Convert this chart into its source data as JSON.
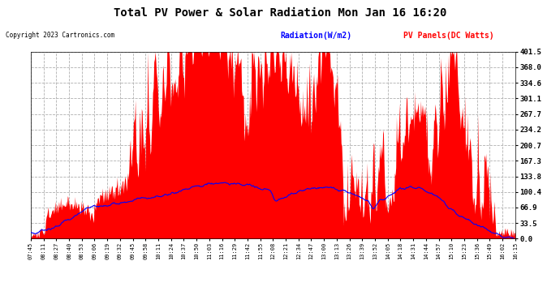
{
  "title": "Total PV Power & Solar Radiation Mon Jan 16 16:20",
  "copyright": "Copyright 2023 Cartronics.com",
  "legend_radiation": "Radiation(W/m2)",
  "legend_pv": "PV Panels(DC Watts)",
  "ylabel_right_ticks": [
    0.0,
    33.5,
    66.9,
    100.4,
    133.8,
    167.3,
    200.7,
    234.2,
    267.7,
    301.1,
    334.6,
    368.0,
    401.5
  ],
  "ymax": 401.5,
  "ymin": 0.0,
  "bg_color": "#ffffff",
  "plot_bg_color": "#ffffff",
  "grid_color": "#b0b0b0",
  "pv_fill_color": "#ff0000",
  "radiation_line_color": "#0000ff",
  "title_color": "#000000",
  "copyright_color": "#000000",
  "radiation_legend_color": "#0000ff",
  "pv_legend_color": "#ff0000",
  "x_labels": [
    "07:45",
    "08:11",
    "08:27",
    "08:40",
    "08:53",
    "09:06",
    "09:19",
    "09:32",
    "09:45",
    "09:58",
    "10:11",
    "10:24",
    "10:37",
    "10:50",
    "11:03",
    "11:16",
    "11:29",
    "11:42",
    "11:55",
    "12:08",
    "12:21",
    "12:34",
    "12:47",
    "13:00",
    "13:13",
    "13:26",
    "13:39",
    "13:52",
    "14:05",
    "14:18",
    "14:31",
    "14:44",
    "14:57",
    "15:10",
    "15:23",
    "15:36",
    "15:49",
    "16:02",
    "16:15"
  ]
}
